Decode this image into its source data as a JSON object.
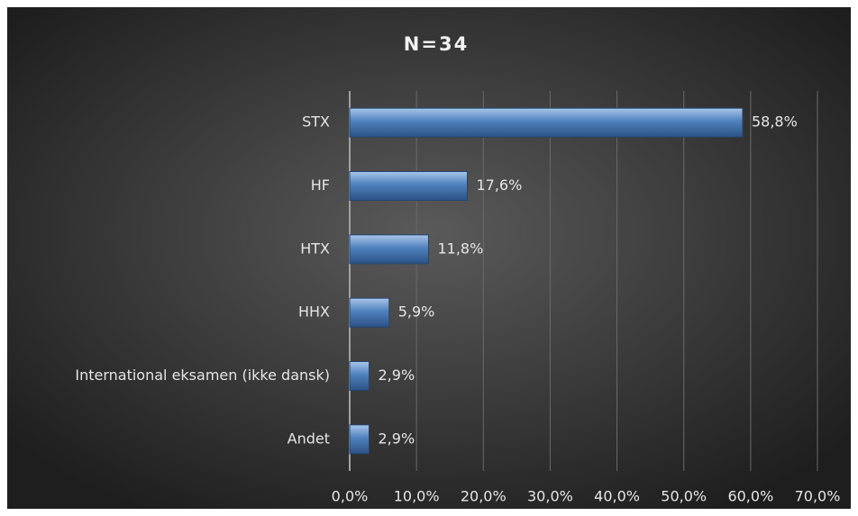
{
  "chart_data": {
    "type": "bar",
    "orientation": "horizontal",
    "title": "N=34",
    "categories": [
      "STX",
      "HF",
      "HTX",
      "HHX",
      "International eksamen (ikke dansk)",
      "Andet"
    ],
    "values": [
      58.8,
      17.6,
      11.8,
      5.9,
      2.9,
      2.9
    ],
    "value_labels": [
      "58,8%",
      "17,6%",
      "11,8%",
      "5,9%",
      "2,9%",
      "2,9%"
    ],
    "color": "#4f81bd",
    "xlim": [
      0,
      70
    ],
    "xticks": [
      {
        "value": 0,
        "label": "0,0%"
      },
      {
        "value": 10,
        "label": "10,0%"
      },
      {
        "value": 20,
        "label": "20,0%"
      },
      {
        "value": 30,
        "label": "30,0%"
      },
      {
        "value": 40,
        "label": "40,0%"
      },
      {
        "value": 50,
        "label": "50,0%"
      },
      {
        "value": 60,
        "label": "60,0%"
      },
      {
        "value": 70,
        "label": "70,0%"
      }
    ],
    "grid": true
  }
}
